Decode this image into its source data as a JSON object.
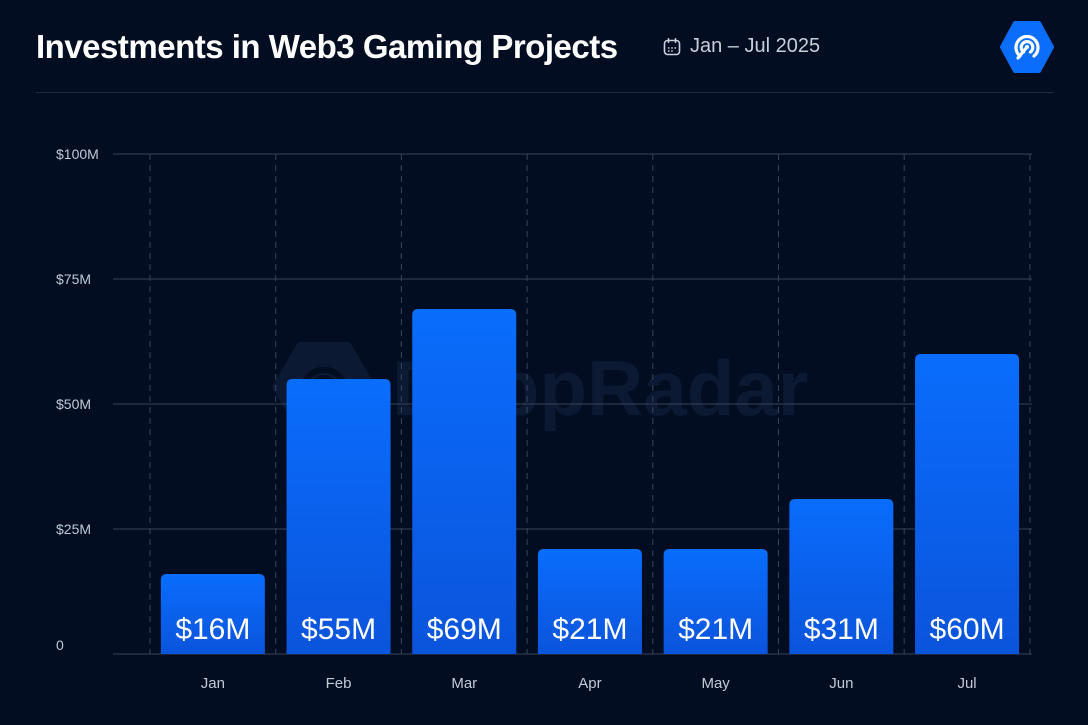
{
  "header": {
    "title": "Investments in Web3 Gaming Projects",
    "date_range": "Jan – Jul 2025",
    "calendar_icon": "calendar-icon",
    "logo_icon": "dappradar-logo-icon"
  },
  "watermark": {
    "text": "DappRadar"
  },
  "colors": {
    "background": "#020d22",
    "bar_top": "#0a6dfc",
    "bar_bottom": "#0b54dc",
    "grid": "#3a4458",
    "accent": "#0a6dfc"
  },
  "chart_data": {
    "type": "bar",
    "title": "Investments in Web3 Gaming Projects",
    "categories": [
      "Jan",
      "Feb",
      "Mar",
      "Apr",
      "May",
      "Jun",
      "Jul"
    ],
    "values": [
      16,
      55,
      69,
      21,
      21,
      31,
      60
    ],
    "data_labels": [
      "$16M",
      "$55M",
      "$69M",
      "$21M",
      "$21M",
      "$31M",
      "$60M"
    ],
    "yticks": [
      0,
      25,
      50,
      75,
      100
    ],
    "ytick_labels": [
      "0",
      "$25M",
      "$50M",
      "$75M",
      "$100M"
    ],
    "ylim": [
      0,
      102
    ],
    "xlabel": "",
    "ylabel": "",
    "grid": true,
    "legend": "none"
  }
}
